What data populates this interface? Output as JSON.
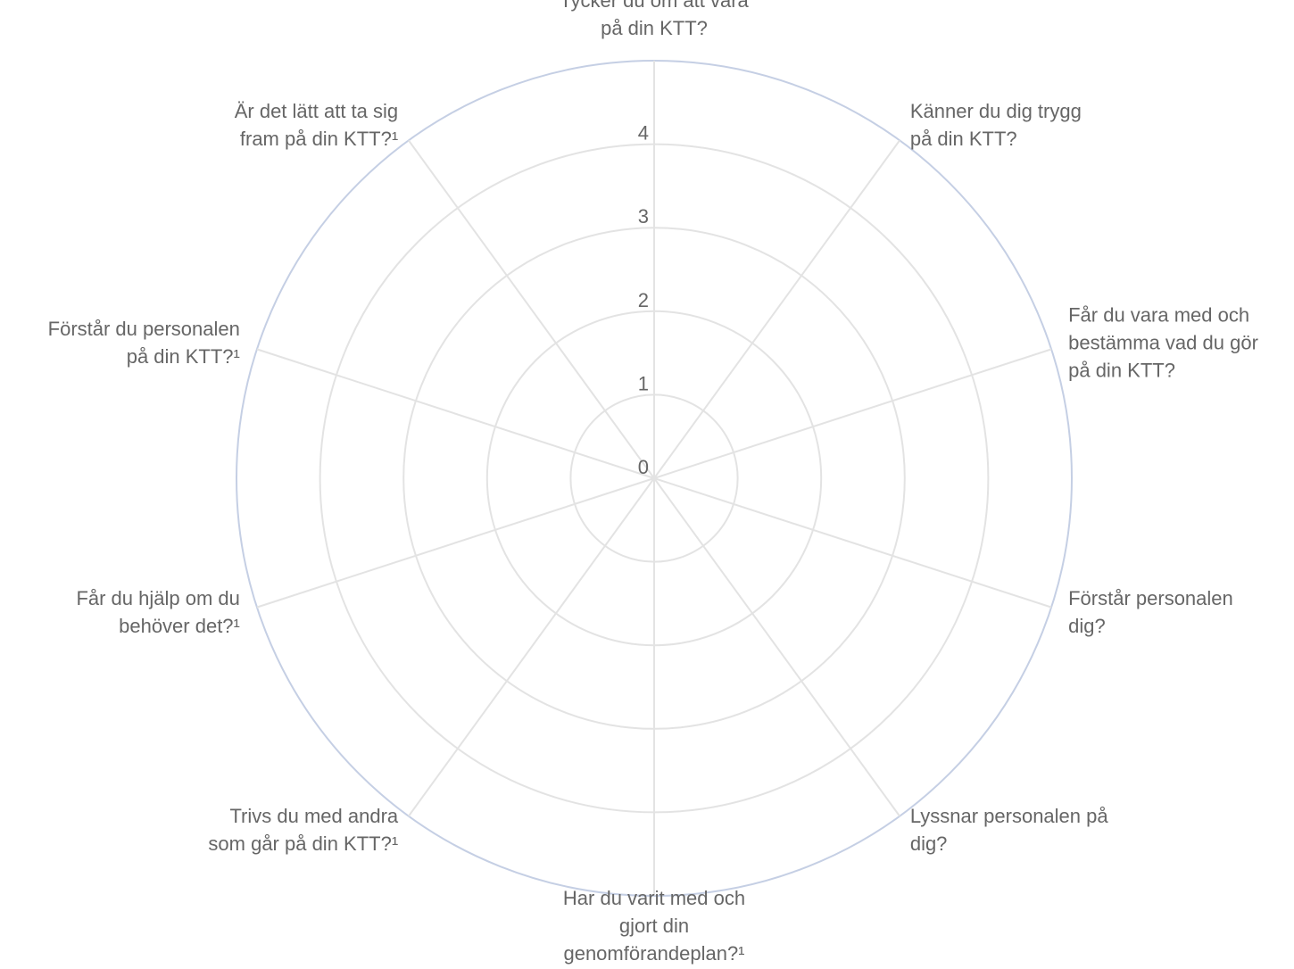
{
  "chart_data": {
    "type": "radar",
    "title": "",
    "categories": [
      [
        "Tycker du om att vara",
        "på din KTT?"
      ],
      [
        "Känner du dig trygg",
        "på din KTT?"
      ],
      [
        "Får du vara med och",
        "bestämma vad du gör",
        "på din KTT?"
      ],
      [
        "Förstår personalen",
        "dig?"
      ],
      [
        "Lyssnar personalen på",
        "dig?"
      ],
      [
        "Har du varit med och",
        "gjort din",
        "genomförandeplan?¹"
      ],
      [
        "Trivs du med andra",
        "som går på din KTT?¹"
      ],
      [
        "Får du hjälp om du",
        "behöver det?¹"
      ],
      [
        "Förstår du personalen",
        "på din KTT?¹"
      ],
      [
        "Är det lätt att ta sig",
        "fram på din KTT?¹"
      ]
    ],
    "r_ticks": [
      "0",
      "1",
      "2",
      "3",
      "4"
    ],
    "r_range": [
      0,
      5
    ],
    "series": [],
    "grid": true,
    "colors": {
      "grid": "#e3e3e3",
      "outer_ring": "#c5cfe4",
      "text": "#666666"
    }
  }
}
